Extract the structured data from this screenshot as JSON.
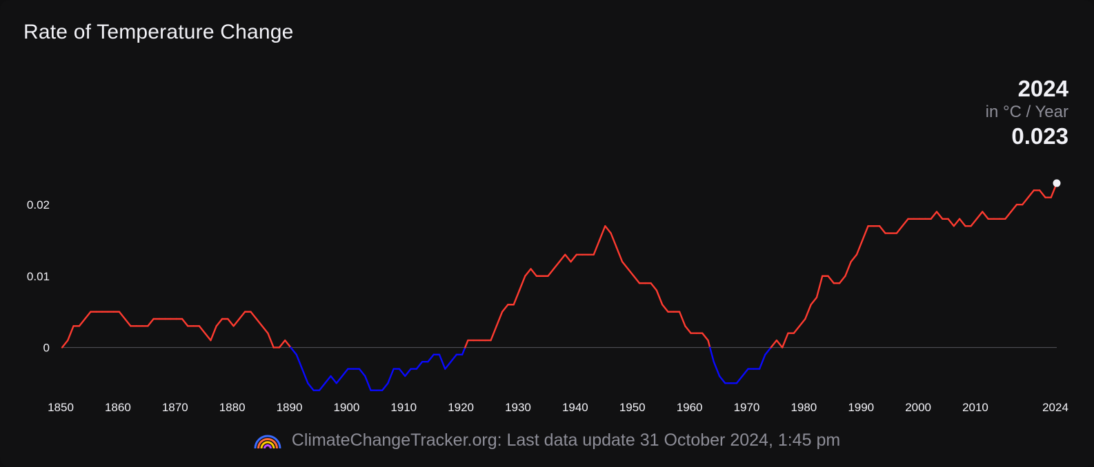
{
  "title": "Rate of Temperature Change",
  "readout": {
    "year": "2024",
    "unit": "in °C / Year",
    "value": "0.023"
  },
  "footer": {
    "text": "ClimateChangeTracker.org: Last data update 31 October 2024, 1:45 pm",
    "logo_icon": "rainbow-logo-icon"
  },
  "colors": {
    "positive": "#ff3b30",
    "negative": "#0a0aff",
    "background": "#111112",
    "zero_line": "#4a4a4f",
    "text": "#f2f2f7",
    "muted": "#8e8e98"
  },
  "chart_data": {
    "type": "line",
    "title": "Rate of Temperature Change",
    "ylabel": "in °C / Year",
    "xlim": [
      1850,
      2024
    ],
    "ylim": [
      -0.0068,
      0.0255
    ],
    "y_ticks": [
      0,
      0.01,
      0.02
    ],
    "y_tick_labels": [
      "0",
      "0.01",
      "0.02"
    ],
    "x_ticks": [
      1850,
      1860,
      1870,
      1880,
      1890,
      1900,
      1910,
      1920,
      1930,
      1940,
      1950,
      1960,
      1970,
      1980,
      1990,
      2000,
      2010,
      2024
    ],
    "x_tick_labels": [
      "1850",
      "1860",
      "1870",
      "1880",
      "1890",
      "1900",
      "1910",
      "1920",
      "1930",
      "1940",
      "1950",
      "1960",
      "1970",
      "1980",
      "1990",
      "2000",
      "2010",
      "2024"
    ],
    "grid": false,
    "color_rule": "red when rate >= 0, blue when rate < 0",
    "series": [
      {
        "points": [
          [
            1850,
            0.0
          ],
          [
            1851,
            0.001
          ],
          [
            1852,
            0.003
          ],
          [
            1853,
            0.003
          ],
          [
            1854,
            0.004
          ],
          [
            1855,
            0.005
          ],
          [
            1856,
            0.005
          ],
          [
            1857,
            0.005
          ],
          [
            1858,
            0.005
          ],
          [
            1859,
            0.005
          ],
          [
            1860,
            0.005
          ],
          [
            1861,
            0.004
          ],
          [
            1862,
            0.003
          ],
          [
            1863,
            0.003
          ],
          [
            1864,
            0.003
          ],
          [
            1865,
            0.003
          ],
          [
            1866,
            0.004
          ],
          [
            1867,
            0.004
          ],
          [
            1868,
            0.004
          ],
          [
            1869,
            0.004
          ],
          [
            1870,
            0.004
          ],
          [
            1871,
            0.004
          ],
          [
            1872,
            0.003
          ],
          [
            1873,
            0.003
          ],
          [
            1874,
            0.003
          ],
          [
            1875,
            0.002
          ],
          [
            1876,
            0.001
          ],
          [
            1877,
            0.003
          ],
          [
            1878,
            0.004
          ],
          [
            1879,
            0.004
          ],
          [
            1880,
            0.003
          ],
          [
            1881,
            0.004
          ],
          [
            1882,
            0.005
          ],
          [
            1883,
            0.005
          ],
          [
            1884,
            0.004
          ],
          [
            1885,
            0.003
          ],
          [
            1886,
            0.002
          ],
          [
            1887,
            0.0
          ],
          [
            1888,
            0.0
          ],
          [
            1889,
            0.001
          ],
          [
            1890,
            0.0
          ],
          [
            1891,
            -0.001
          ],
          [
            1892,
            -0.003
          ],
          [
            1893,
            -0.005
          ],
          [
            1894,
            -0.006
          ],
          [
            1895,
            -0.006
          ],
          [
            1896,
            -0.005
          ],
          [
            1897,
            -0.004
          ],
          [
            1898,
            -0.005
          ],
          [
            1899,
            -0.004
          ],
          [
            1900,
            -0.003
          ],
          [
            1901,
            -0.003
          ],
          [
            1902,
            -0.003
          ],
          [
            1903,
            -0.004
          ],
          [
            1904,
            -0.006
          ],
          [
            1905,
            -0.006
          ],
          [
            1906,
            -0.006
          ],
          [
            1907,
            -0.005
          ],
          [
            1908,
            -0.003
          ],
          [
            1909,
            -0.003
          ],
          [
            1910,
            -0.004
          ],
          [
            1911,
            -0.003
          ],
          [
            1912,
            -0.003
          ],
          [
            1913,
            -0.002
          ],
          [
            1914,
            -0.002
          ],
          [
            1915,
            -0.001
          ],
          [
            1916,
            -0.001
          ],
          [
            1917,
            -0.003
          ],
          [
            1918,
            -0.002
          ],
          [
            1919,
            -0.001
          ],
          [
            1920,
            -0.001
          ],
          [
            1921,
            0.001
          ],
          [
            1922,
            0.001
          ],
          [
            1923,
            0.001
          ],
          [
            1924,
            0.001
          ],
          [
            1925,
            0.001
          ],
          [
            1926,
            0.003
          ],
          [
            1927,
            0.005
          ],
          [
            1928,
            0.006
          ],
          [
            1929,
            0.006
          ],
          [
            1930,
            0.008
          ],
          [
            1931,
            0.01
          ],
          [
            1932,
            0.011
          ],
          [
            1933,
            0.01
          ],
          [
            1934,
            0.01
          ],
          [
            1935,
            0.01
          ],
          [
            1936,
            0.011
          ],
          [
            1937,
            0.012
          ],
          [
            1938,
            0.013
          ],
          [
            1939,
            0.012
          ],
          [
            1940,
            0.013
          ],
          [
            1941,
            0.013
          ],
          [
            1942,
            0.013
          ],
          [
            1943,
            0.013
          ],
          [
            1944,
            0.015
          ],
          [
            1945,
            0.017
          ],
          [
            1946,
            0.016
          ],
          [
            1947,
            0.014
          ],
          [
            1948,
            0.012
          ],
          [
            1949,
            0.011
          ],
          [
            1950,
            0.01
          ],
          [
            1951,
            0.009
          ],
          [
            1952,
            0.009
          ],
          [
            1953,
            0.009
          ],
          [
            1954,
            0.008
          ],
          [
            1955,
            0.006
          ],
          [
            1956,
            0.005
          ],
          [
            1957,
            0.005
          ],
          [
            1958,
            0.005
          ],
          [
            1959,
            0.003
          ],
          [
            1960,
            0.002
          ],
          [
            1961,
            0.002
          ],
          [
            1962,
            0.002
          ],
          [
            1963,
            0.001
          ],
          [
            1964,
            -0.002
          ],
          [
            1965,
            -0.004
          ],
          [
            1966,
            -0.005
          ],
          [
            1967,
            -0.005
          ],
          [
            1968,
            -0.005
          ],
          [
            1969,
            -0.004
          ],
          [
            1970,
            -0.003
          ],
          [
            1971,
            -0.003
          ],
          [
            1972,
            -0.003
          ],
          [
            1973,
            -0.001
          ],
          [
            1974,
            0.0
          ],
          [
            1975,
            0.001
          ],
          [
            1976,
            0.0
          ],
          [
            1977,
            0.002
          ],
          [
            1978,
            0.002
          ],
          [
            1979,
            0.003
          ],
          [
            1980,
            0.004
          ],
          [
            1981,
            0.006
          ],
          [
            1982,
            0.007
          ],
          [
            1983,
            0.01
          ],
          [
            1984,
            0.01
          ],
          [
            1985,
            0.009
          ],
          [
            1986,
            0.009
          ],
          [
            1987,
            0.01
          ],
          [
            1988,
            0.012
          ],
          [
            1989,
            0.013
          ],
          [
            1990,
            0.015
          ],
          [
            1991,
            0.017
          ],
          [
            1992,
            0.017
          ],
          [
            1993,
            0.017
          ],
          [
            1994,
            0.016
          ],
          [
            1995,
            0.016
          ],
          [
            1996,
            0.016
          ],
          [
            1997,
            0.017
          ],
          [
            1998,
            0.018
          ],
          [
            1999,
            0.018
          ],
          [
            2000,
            0.018
          ],
          [
            2001,
            0.018
          ],
          [
            2002,
            0.018
          ],
          [
            2003,
            0.019
          ],
          [
            2004,
            0.018
          ],
          [
            2005,
            0.018
          ],
          [
            2006,
            0.017
          ],
          [
            2007,
            0.018
          ],
          [
            2008,
            0.017
          ],
          [
            2009,
            0.017
          ],
          [
            2010,
            0.018
          ],
          [
            2011,
            0.019
          ],
          [
            2012,
            0.018
          ],
          [
            2013,
            0.018
          ],
          [
            2014,
            0.018
          ],
          [
            2015,
            0.018
          ],
          [
            2016,
            0.019
          ],
          [
            2017,
            0.02
          ],
          [
            2018,
            0.02
          ],
          [
            2019,
            0.021
          ],
          [
            2020,
            0.022
          ],
          [
            2021,
            0.022
          ],
          [
            2022,
            0.021
          ],
          [
            2023,
            0.021
          ],
          [
            2024,
            0.023
          ]
        ]
      }
    ],
    "highlight": {
      "x": 2024,
      "y": 0.023
    }
  }
}
